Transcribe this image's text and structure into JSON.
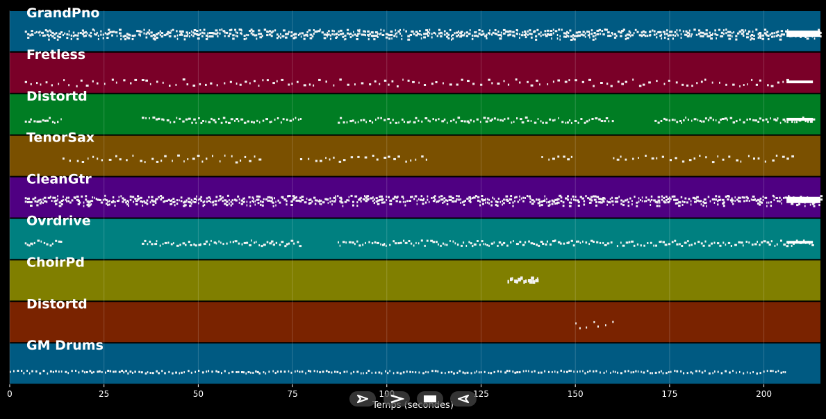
{
  "chart_data": {
    "type": "piano-roll",
    "xlabel": "Temps (secondes)",
    "xlim": [
      0,
      215
    ],
    "x_ticks": [
      0,
      25,
      50,
      75,
      100,
      125,
      150,
      175,
      200
    ],
    "grid": true,
    "tracks": [
      {
        "name": "GrandPno",
        "color": "#005a82",
        "active": [
          [
            4,
            215
          ]
        ],
        "density": "very-dense",
        "end_block": [
          206,
          215
        ]
      },
      {
        "name": "Fretless",
        "color": "#7a0028",
        "active": [
          [
            4,
            206
          ]
        ],
        "density": "sparse",
        "end_block": [
          206,
          213
        ]
      },
      {
        "name": "Distortd",
        "color": "#007d23",
        "active": [
          [
            4,
            14
          ],
          [
            35,
            77
          ],
          [
            87,
            160
          ],
          [
            171,
            213
          ]
        ],
        "density": "medium",
        "end_block": [
          206,
          213
        ]
      },
      {
        "name": "TenorSax",
        "color": "#7a5000",
        "active": [
          [
            14,
            27
          ],
          [
            28,
            67
          ],
          [
            77,
            112
          ],
          [
            141,
            150
          ],
          [
            160,
            208
          ]
        ],
        "density": "sparse"
      },
      {
        "name": "CleanGtr",
        "color": "#4f0082",
        "active": [
          [
            4,
            215
          ]
        ],
        "density": "very-dense",
        "end_block": [
          206,
          215
        ]
      },
      {
        "name": "Ovrdrive",
        "color": "#008080",
        "active": [
          [
            4,
            14
          ],
          [
            35,
            77
          ],
          [
            87,
            160
          ],
          [
            161,
            213
          ]
        ],
        "density": "medium",
        "end_block": [
          206,
          213
        ]
      },
      {
        "name": "ChoirPd",
        "color": "#807f00",
        "active": [
          [
            132,
            140
          ]
        ],
        "density": "block"
      },
      {
        "name": "Distortd",
        "color": "#7a2300",
        "active": [
          [
            150,
            160
          ]
        ],
        "density": "sparse"
      },
      {
        "name": "GM Drums",
        "color": "#005a82",
        "active": [
          [
            0,
            206
          ]
        ],
        "density": "dense"
      }
    ]
  },
  "controls": [
    {
      "name": "play-icon",
      "label": "play"
    },
    {
      "name": "fast-forward-icon",
      "label": "fast-forward"
    },
    {
      "name": "stop-icon",
      "label": "stop"
    },
    {
      "name": "rewind-icon",
      "label": "rewind"
    }
  ]
}
